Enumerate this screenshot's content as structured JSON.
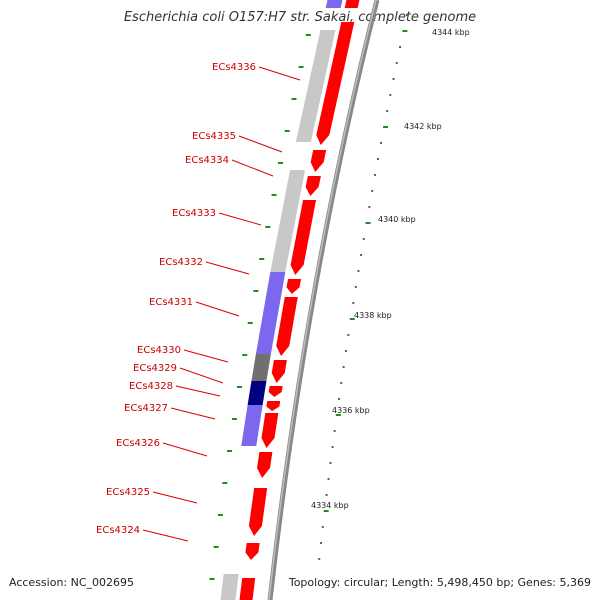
{
  "title": "Escherichia coli O157:H7 str. Sakai, complete genome",
  "footer": {
    "accession": "Accession: NC_002695",
    "topology": "Topology: circular; Length: 5,498,450 bp; Genes: 5,369"
  },
  "scale_labels": [
    "4344 kbp",
    "4342 kbp",
    "4340 kbp",
    "4338 kbp",
    "4336 kbp",
    "4334 kbp"
  ],
  "gene_labels": [
    "ECs4336",
    "ECs4335",
    "ECs4334",
    "ECs4333",
    "ECs4332",
    "ECs4331",
    "ECs4330",
    "ECs4329",
    "ECs4328",
    "ECs4327",
    "ECs4326",
    "ECs4325",
    "ECs4324"
  ],
  "colors": {
    "forward_gene": "#ff0000",
    "reverse_gray": "#c8c8c8",
    "reverse_blue": "#7b68ee",
    "reverse_navy": "#000080",
    "reverse_dark": "#707070",
    "label": "#cc0000",
    "tick": "#228b22",
    "backbone": "#888888"
  }
}
